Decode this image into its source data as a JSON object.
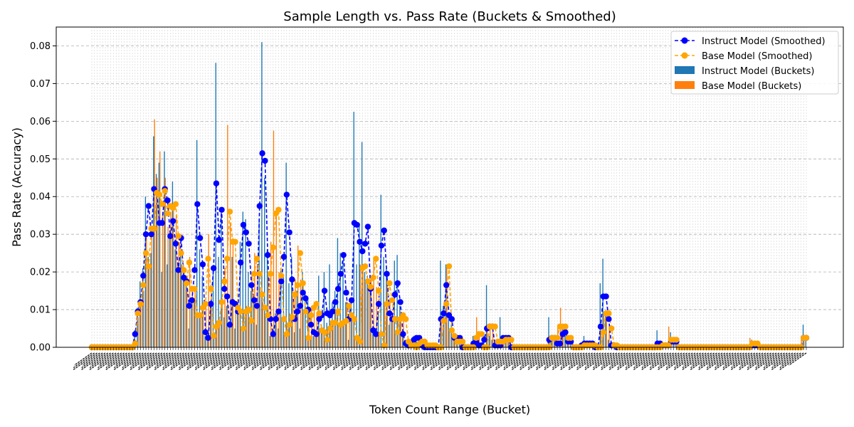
{
  "chart_data": {
    "type": "bar",
    "title": "Sample Length vs. Pass Rate (Buckets & Smoothed)",
    "xlabel": "Token Count Range (Bucket)",
    "ylabel": "Pass Rate (Accuracy)",
    "ylim": [
      0,
      0.085
    ],
    "yticks": [
      "0.00",
      "0.01",
      "0.02",
      "0.03",
      "0.04",
      "0.05",
      "0.06",
      "0.07",
      "0.08"
    ],
    "grid": true,
    "legend_position": "top-right",
    "x_tick_labels_note": "",
    "series": [
      {
        "name": "Instruct Model (Smoothed)",
        "kind": "line",
        "color": "#0000ff",
        "values": [
          0,
          0,
          0,
          0,
          0,
          0,
          0,
          0,
          0,
          0,
          0,
          0,
          0,
          0,
          0,
          0,
          0.0035,
          0.0095,
          0.012,
          0.019,
          0.03,
          0.0375,
          0.03,
          0.042,
          0.041,
          0.033,
          0.033,
          0.042,
          0.039,
          0.0295,
          0.0335,
          0.0275,
          0.0205,
          0.029,
          0.0185,
          0.0175,
          0.011,
          0.0125,
          0.0205,
          0.038,
          0.029,
          0.022,
          0.004,
          0.0025,
          0.0115,
          0.021,
          0.0435,
          0.0285,
          0.0365,
          0.0155,
          0.0135,
          0.006,
          0.012,
          0.0115,
          0.0095,
          0.0225,
          0.0325,
          0.0305,
          0.0275,
          0.0165,
          0.0125,
          0.011,
          0.0375,
          0.0515,
          0.0495,
          0.0245,
          0.0075,
          0.0035,
          0.0075,
          0.0095,
          0.0175,
          0.024,
          0.0405,
          0.0305,
          0.018,
          0.0075,
          0.0095,
          0.011,
          0.0145,
          0.013,
          0.01,
          0.006,
          0.004,
          0.0035,
          0.0075,
          0.0085,
          0.015,
          0.009,
          0.0085,
          0.0095,
          0.012,
          0.0155,
          0.0195,
          0.0245,
          0.0145,
          0.0075,
          0.0125,
          0.033,
          0.0325,
          0.028,
          0.0255,
          0.0275,
          0.032,
          0.0155,
          0.0045,
          0.0035,
          0.0115,
          0.027,
          0.031,
          0.0195,
          0.009,
          0.0075,
          0.014,
          0.017,
          0.012,
          0.0035,
          0.001,
          0.0005,
          0.0005,
          0.002,
          0.0025,
          0.0025,
          0.0005,
          0,
          0,
          0,
          0,
          0,
          0,
          0.0075,
          0.009,
          0.0165,
          0.0085,
          0.0075,
          0.0025,
          0.0025,
          0.0025,
          0,
          0,
          0,
          0,
          0.001,
          0.0015,
          0.0005,
          0.0005,
          0.002,
          0.005,
          0.0055,
          0.0055,
          0.0005,
          0.0005,
          0.0005,
          0.0025,
          0.0025,
          0.0025,
          0,
          0,
          0,
          0,
          0,
          0,
          0,
          0,
          0,
          0,
          0,
          0,
          0,
          0,
          0.002,
          0.0025,
          0.0025,
          0.001,
          0.001,
          0.0035,
          0.004,
          0.0015,
          0.0015,
          0,
          0,
          0,
          0.0005,
          0.001,
          0.001,
          0.001,
          0.001,
          0,
          0,
          0.0055,
          0.0135,
          0.0135,
          0.0075,
          0.0005,
          0.0005,
          0,
          0,
          0,
          0,
          0,
          0,
          0,
          0,
          0,
          0,
          0,
          0,
          0,
          0,
          0,
          0.001,
          0.001,
          0.0005,
          0.0005,
          0.0005,
          0.0015,
          0.0015,
          0.0015,
          0,
          0,
          0,
          0,
          0,
          0,
          0,
          0,
          0,
          0,
          0,
          0,
          0,
          0,
          0,
          0,
          0,
          0,
          0,
          0,
          0,
          0,
          0,
          0,
          0,
          0,
          0,
          0.0005,
          0.0005,
          0.0005,
          0,
          0,
          0,
          0,
          0,
          0,
          0,
          0,
          0,
          0,
          0,
          0,
          0,
          0,
          0,
          0,
          0.0025,
          0.0025
        ]
      },
      {
        "name": "Base Model (Smoothed)",
        "kind": "line",
        "color": "#ffa500",
        "values": [
          0,
          0,
          0,
          0,
          0,
          0,
          0,
          0,
          0,
          0,
          0,
          0,
          0,
          0,
          0,
          0,
          0.001,
          0.009,
          0.0115,
          0.0165,
          0.025,
          0.0215,
          0.0315,
          0.0315,
          0.041,
          0.0405,
          0.038,
          0.0415,
          0.0355,
          0.0375,
          0.037,
          0.038,
          0.0295,
          0.025,
          0.0205,
          0.017,
          0.0225,
          0.0155,
          0.0155,
          0.0085,
          0.0085,
          0.0105,
          0.0115,
          0.0235,
          0.0155,
          0.003,
          0.0055,
          0.0065,
          0.012,
          0.0175,
          0.0235,
          0.036,
          0.028,
          0.028,
          0.0105,
          0.0095,
          0.005,
          0.0095,
          0.01,
          0.007,
          0.0195,
          0.0235,
          0.0195,
          0.014,
          0.0105,
          0.0085,
          0.0195,
          0.0265,
          0.0355,
          0.0365,
          0.019,
          0.0075,
          0.0035,
          0.006,
          0.008,
          0.014,
          0.0165,
          0.025,
          0.017,
          0.0095,
          0.0025,
          0.0085,
          0.0105,
          0.0115,
          0.009,
          0.0045,
          0.004,
          0.002,
          0.005,
          0.0065,
          0.0065,
          0.0095,
          0.006,
          0.0065,
          0.007,
          0.011,
          0.0085,
          0.0075,
          0.0025,
          0.0015,
          0.021,
          0.0215,
          0.0175,
          0.016,
          0.0185,
          0.0235,
          0.015,
          0.0035,
          0.0005,
          0.0115,
          0.017,
          0.0125,
          0.0075,
          0.004,
          0.0075,
          0.0085,
          0.0075,
          0.0015,
          0.0005,
          0.0005,
          0,
          0.001,
          0.0015,
          0.0015,
          0.0005,
          0.0005,
          0.0005,
          0.0005,
          0,
          0,
          0.007,
          0.0115,
          0.0215,
          0.0045,
          0.003,
          0.0015,
          0.0015,
          0.0015,
          0,
          0,
          0,
          0,
          0.0025,
          0.0035,
          0.0035,
          0,
          0,
          0.0055,
          0.0055,
          0.0055,
          0.0015,
          0.0015,
          0.0015,
          0.002,
          0.002,
          0.002,
          0,
          0,
          0,
          0,
          0,
          0,
          0,
          0,
          0,
          0,
          0,
          0,
          0,
          0,
          0.0025,
          0.0025,
          0.0025,
          0.0055,
          0.0055,
          0.0055,
          0.0025,
          0.0025,
          0,
          0,
          0,
          0,
          0.0005,
          0.0005,
          0.0005,
          0.0005,
          0.0005,
          0,
          0,
          0.004,
          0.009,
          0.009,
          0.005,
          0.0005,
          0.0005,
          0,
          0,
          0,
          0,
          0,
          0,
          0,
          0,
          0,
          0,
          0,
          0,
          0,
          0,
          0,
          0,
          0.0005,
          0.0005,
          0.0005,
          0.002,
          0.002,
          0.002,
          0,
          0,
          0,
          0,
          0,
          0,
          0,
          0,
          0,
          0,
          0,
          0,
          0,
          0,
          0,
          0,
          0,
          0,
          0,
          0,
          0,
          0,
          0,
          0,
          0,
          0,
          0,
          0.001,
          0.001,
          0.001,
          0,
          0,
          0,
          0,
          0,
          0,
          0,
          0,
          0,
          0,
          0,
          0,
          0,
          0,
          0,
          0,
          0.0025,
          0.0025
        ]
      },
      {
        "name": "Instruct Model (Buckets)",
        "kind": "bar",
        "color": "#1f77b4",
        "values": [
          0,
          0,
          0,
          0,
          0,
          0,
          0,
          0,
          0,
          0,
          0,
          0,
          0,
          0,
          0,
          0,
          0.0045,
          0.0105,
          0.0175,
          0.021,
          0.04,
          0.024,
          0.025,
          0.056,
          0.046,
          0.049,
          0.02,
          0.052,
          0.022,
          0.029,
          0.044,
          0.026,
          0.022,
          0.027,
          0.022,
          0.019,
          0.005,
          0.012,
          0.013,
          0.055,
          0.026,
          0.019,
          0.003,
          0.002,
          0.011,
          0.021,
          0.0755,
          0.024,
          0.035,
          0.008,
          0.011,
          0.006,
          0.024,
          0.005,
          0.009,
          0.028,
          0.036,
          0.034,
          0.02,
          0.015,
          0.012,
          0.006,
          0.034,
          0.081,
          0.045,
          0.026,
          0.003,
          0.004,
          0.009,
          0.005,
          0.021,
          0.019,
          0.049,
          0.017,
          0.024,
          0.004,
          0.015,
          0.005,
          0.02,
          0.015,
          0.013,
          0.002,
          0.003,
          0.004,
          0.019,
          0.006,
          0.02,
          0.0065,
          0.022,
          0.012,
          0.015,
          0.029,
          0.025,
          0.023,
          0.012,
          0.002,
          0.012,
          0.0625,
          0.022,
          0.033,
          0.0545,
          0.02,
          0.019,
          0.018,
          0.004,
          0.003,
          0.009,
          0.0405,
          0.024,
          0.021,
          0.006,
          0.0075,
          0.023,
          0.0245,
          0.011,
          0.003,
          0.002,
          0.001,
          0.001,
          0.003,
          0.003,
          0.002,
          0.001,
          0,
          0,
          0,
          0,
          0,
          0,
          0.023,
          0.011,
          0.022,
          0.008,
          0.006,
          0.002,
          0.002,
          0.002,
          0,
          0,
          0,
          0,
          0.003,
          0.002,
          0.001,
          0,
          0.004,
          0.0165,
          0.003,
          0.002,
          0.001,
          0,
          0.008,
          0.002,
          0.002,
          0.002,
          0,
          0,
          0,
          0,
          0,
          0,
          0,
          0,
          0,
          0,
          0,
          0,
          0,
          0,
          0.008,
          0.002,
          0.002,
          0.001,
          0.001,
          0.006,
          0.004,
          0.002,
          0.002,
          0,
          0,
          0,
          0.001,
          0.003,
          0.001,
          0.001,
          0.001,
          0,
          0,
          0.017,
          0.0235,
          0.009,
          0.002,
          0.001,
          0.001,
          0,
          0,
          0,
          0,
          0,
          0,
          0,
          0,
          0,
          0,
          0,
          0,
          0,
          0,
          0,
          0.0045,
          0.001,
          0.001,
          0.001,
          0.001,
          0.004,
          0.001,
          0.001,
          0,
          0,
          0,
          0,
          0,
          0,
          0,
          0,
          0,
          0,
          0,
          0,
          0,
          0,
          0,
          0,
          0,
          0,
          0,
          0,
          0,
          0,
          0,
          0,
          0,
          0,
          0,
          0.002,
          0.001,
          0.001,
          0,
          0,
          0,
          0,
          0,
          0,
          0,
          0,
          0,
          0,
          0,
          0,
          0,
          0,
          0,
          0,
          0.006,
          0.003
        ]
      },
      {
        "name": "Base Model (Buckets)",
        "kind": "bar",
        "color": "#ff7f0e",
        "values": [
          0,
          0,
          0,
          0,
          0,
          0,
          0,
          0,
          0,
          0,
          0,
          0,
          0,
          0,
          0,
          0,
          0.001,
          0.008,
          0.012,
          0.015,
          0.03,
          0.022,
          0.03,
          0.0605,
          0.045,
          0.052,
          0.036,
          0.045,
          0.032,
          0.036,
          0.038,
          0.035,
          0.028,
          0.022,
          0.018,
          0.016,
          0.024,
          0.015,
          0.016,
          0.009,
          0.009,
          0.01,
          0.012,
          0.03,
          0.014,
          0.003,
          0.006,
          0.007,
          0.013,
          0.021,
          0.059,
          0.033,
          0.029,
          0.011,
          0.009,
          0.005,
          0.01,
          0.011,
          0.008,
          0.02,
          0.025,
          0.022,
          0.016,
          0.012,
          0.009,
          0.02,
          0.028,
          0.0575,
          0.037,
          0.02,
          0.007,
          0.004,
          0.006,
          0.009,
          0.015,
          0.018,
          0.027,
          0.018,
          0.01,
          0.003,
          0.009,
          0.011,
          0.012,
          0.009,
          0.005,
          0.004,
          0.002,
          0.005,
          0.007,
          0.007,
          0.01,
          0.006,
          0.007,
          0.007,
          0.012,
          0.009,
          0.008,
          0.003,
          0.002,
          0.022,
          0.022,
          0.018,
          0.016,
          0.019,
          0.024,
          0.016,
          0.004,
          0.001,
          0.012,
          0.018,
          0.013,
          0.008,
          0.004,
          0.008,
          0.009,
          0.008,
          0.002,
          0.001,
          0.001,
          0,
          0.001,
          0.002,
          0.002,
          0.001,
          0.001,
          0.001,
          0.001,
          0,
          0,
          0.007,
          0.012,
          0.0215,
          0.005,
          0.003,
          0.002,
          0.002,
          0.002,
          0,
          0,
          0,
          0,
          0.003,
          0.008,
          0.004,
          0,
          0,
          0.006,
          0.006,
          0.006,
          0.002,
          0.002,
          0.002,
          0.002,
          0.002,
          0.002,
          0,
          0,
          0,
          0,
          0,
          0,
          0,
          0,
          0,
          0,
          0,
          0,
          0,
          0,
          0.003,
          0.003,
          0.003,
          0.006,
          0.0105,
          0.006,
          0.003,
          0.003,
          0,
          0,
          0,
          0,
          0.001,
          0.001,
          0.001,
          0.001,
          0.001,
          0,
          0,
          0.004,
          0.009,
          0.009,
          0.005,
          0.001,
          0.001,
          0,
          0,
          0,
          0,
          0,
          0,
          0,
          0,
          0,
          0,
          0,
          0,
          0,
          0,
          0,
          0,
          0.001,
          0.001,
          0.001,
          0.0055,
          0.002,
          0.002,
          0,
          0,
          0,
          0,
          0,
          0,
          0,
          0,
          0,
          0,
          0,
          0,
          0,
          0,
          0,
          0,
          0,
          0,
          0,
          0,
          0,
          0,
          0,
          0,
          0,
          0,
          0,
          0.0025,
          0.001,
          0.001,
          0,
          0,
          0,
          0,
          0,
          0,
          0,
          0,
          0,
          0,
          0,
          0,
          0,
          0,
          0,
          0,
          0.003,
          0.003
        ]
      }
    ]
  }
}
